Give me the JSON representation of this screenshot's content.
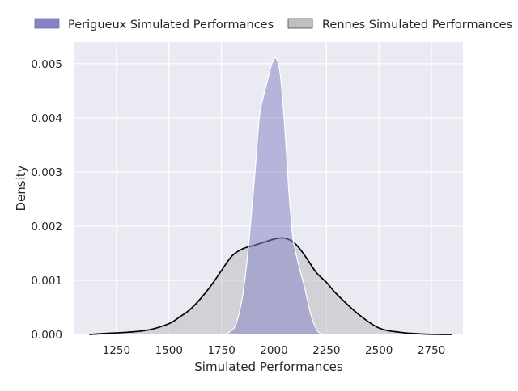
{
  "chart_data": {
    "type": "area",
    "title": "",
    "xlabel": "Simulated Performances",
    "ylabel": "Density",
    "xlim": [
      1050,
      2900
    ],
    "ylim": [
      0,
      0.0054
    ],
    "x_ticks": [
      1250,
      1500,
      1750,
      2000,
      2250,
      2500,
      2750
    ],
    "y_ticks": [
      0.0,
      0.001,
      0.002,
      0.003,
      0.004,
      0.005
    ],
    "y_tick_labels": [
      "0.000",
      "0.001",
      "0.002",
      "0.003",
      "0.004",
      "0.005"
    ],
    "grid": true,
    "legend_position": "top",
    "series": [
      {
        "name": "Perigueux Simulated Performances",
        "color": "#8585c5",
        "x": [
          1760,
          1790,
          1820,
          1850,
          1870,
          1890,
          1910,
          1930,
          1950,
          1970,
          1990,
          2010,
          2030,
          2050,
          2070,
          2090,
          2110,
          2130,
          2150,
          2170,
          2190,
          2210,
          2240
        ],
        "y": [
          0.0,
          5e-05,
          0.0002,
          0.0007,
          0.0013,
          0.0021,
          0.003,
          0.004,
          0.0044,
          0.0047,
          0.005,
          0.0051,
          0.0048,
          0.0039,
          0.0027,
          0.0018,
          0.0014,
          0.0011,
          0.0008,
          0.00045,
          0.0002,
          5e-05,
          0.0
        ]
      },
      {
        "name": "Rennes Simulated Performances",
        "color": "#bfbfbf",
        "x": [
          1120,
          1200,
          1300,
          1400,
          1500,
          1550,
          1600,
          1650,
          1700,
          1750,
          1800,
          1850,
          1900,
          1950,
          2000,
          2050,
          2100,
          2150,
          2200,
          2250,
          2300,
          2400,
          2500,
          2600,
          2700,
          2800,
          2850
        ],
        "y": [
          0.0,
          2e-05,
          4e-05,
          8e-05,
          0.0002,
          0.00032,
          0.00046,
          0.00066,
          0.0009,
          0.00118,
          0.00145,
          0.00158,
          0.00164,
          0.0017,
          0.00176,
          0.00178,
          0.00168,
          0.00144,
          0.00115,
          0.00096,
          0.00074,
          0.00038,
          0.00012,
          4e-05,
          1e-05,
          0.0,
          0.0
        ]
      }
    ]
  }
}
